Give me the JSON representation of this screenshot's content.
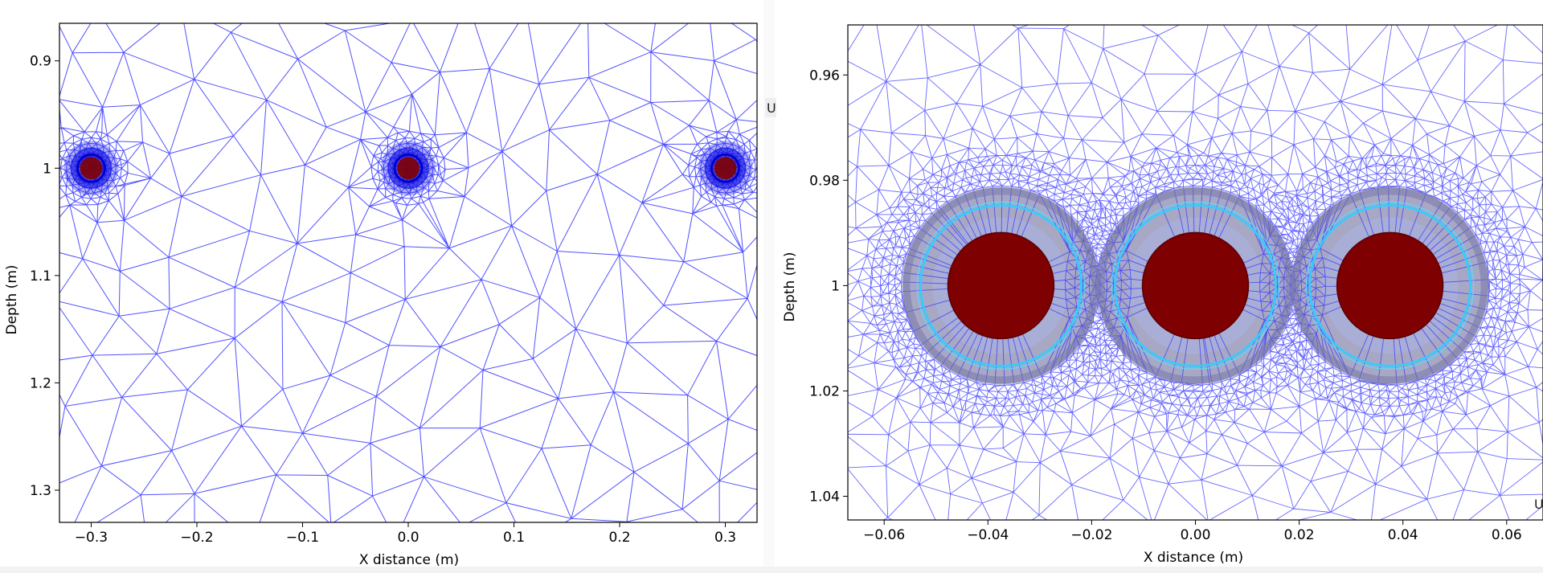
{
  "chart_data": [
    {
      "type": "mesh",
      "xlabel": "X distance (m)",
      "ylabel": "Depth (m)",
      "xlim": [
        -0.33,
        0.33
      ],
      "ylim": [
        1.33,
        0.865
      ],
      "x_ticks": [
        -0.3,
        -0.2,
        -0.1,
        0.0,
        0.1,
        0.2,
        0.3
      ],
      "x_tick_labels": [
        "−0.3",
        "−0.2",
        "−0.1",
        "0.0",
        "0.1",
        "0.2",
        "0.3"
      ],
      "y_ticks": [
        0.9,
        1.0,
        1.1,
        1.2,
        1.3
      ],
      "y_tick_labels": [
        "0.9",
        "1",
        "1.1",
        "1.2",
        "1.3"
      ],
      "cables": [
        {
          "x": -0.3,
          "y": 1.0
        },
        {
          "x": 0.0,
          "y": 1.0
        },
        {
          "x": 0.3,
          "y": 1.0
        }
      ],
      "edge_mark": "U",
      "colors": {
        "mesh": "#3333ff",
        "core": "#7f0000"
      }
    },
    {
      "type": "mesh",
      "xlabel": "X distance (m)",
      "ylabel": "Depth (m)",
      "xlim": [
        -0.067,
        0.067
      ],
      "ylim": [
        1.0445,
        0.9505
      ],
      "x_ticks": [
        -0.06,
        -0.04,
        -0.02,
        0.0,
        0.02,
        0.04,
        0.06
      ],
      "x_tick_labels": [
        "−0.06",
        "−0.04",
        "−0.02",
        "0.00",
        "0.02",
        "0.04",
        "0.06"
      ],
      "y_ticks": [
        0.96,
        0.98,
        1.0,
        1.02,
        1.04
      ],
      "y_tick_labels": [
        "0.96",
        "0.98",
        "1",
        "1.02",
        "1.04"
      ],
      "cables": [
        {
          "x": -0.0375,
          "y": 1.0
        },
        {
          "x": 0.0,
          "y": 1.0
        },
        {
          "x": 0.0375,
          "y": 1.0
        }
      ],
      "edge_mark": "U",
      "colors": {
        "mesh": "#3333ff",
        "core": "#7f0000",
        "screen": "#33ccff",
        "insulation": "#8888bb"
      }
    }
  ]
}
